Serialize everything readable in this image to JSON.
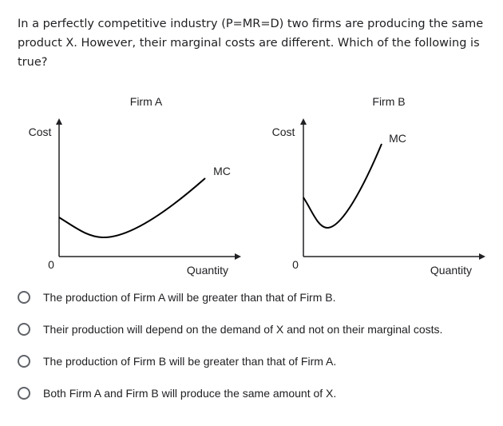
{
  "question": {
    "text": "In a perfectly competitive industry (P=MR=D) two firms are producing the same product X. However, their marginal costs are different. Which of the following is true?"
  },
  "figure": {
    "firm_a": {
      "title": "Firm A",
      "y_label": "Cost",
      "x_label": "Quantity",
      "origin_label": "0",
      "curve_label": "MC"
    },
    "firm_b": {
      "title": "Firm B",
      "y_label": "Cost",
      "x_label": "Quantity",
      "origin_label": "0",
      "curve_label": "MC"
    }
  },
  "options": [
    {
      "label": "The production of Firm A will be greater than that of Firm B.",
      "selected": false
    },
    {
      "label": "Their production will depend on the demand of X and not on their marginal costs.",
      "selected": false
    },
    {
      "label": "The production of Firm B will be greater than that of Firm A.",
      "selected": false
    },
    {
      "label": "Both Firm A and Firm B will produce the same amount of X.",
      "selected": false
    }
  ],
  "colors": {
    "text": "#202124",
    "radio_border": "#5f6368"
  }
}
